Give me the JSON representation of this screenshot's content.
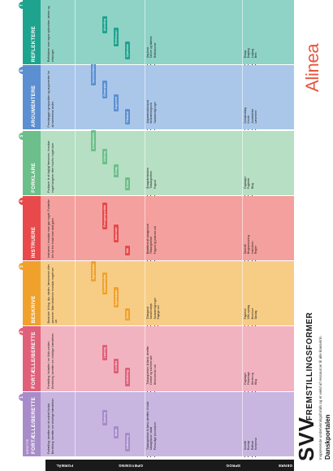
{
  "heading": {
    "svv": "SVV",
    "title": "FREMSTILLINGSFORMER"
  },
  "footer": {
    "title": "Danskportalen",
    "subtitle": "Inspirerende undervisningsforløb og et væld af ressourcer til alle klassetrin."
  },
  "logo": "Alinea",
  "row_labels": [
    "FORMÅL",
    "OPBYGNING",
    "SPROG",
    "GENRE"
  ],
  "columns": [
    {
      "name": "FORTÆLLE/BERETTE",
      "sub": "BERETTE",
      "badge": "1",
      "color": "#a88bc9",
      "light": "#c8b6e0",
      "purpose": "Fortælling: beretter om et ordnet forløb. Beretning: beretter om virkelige hændelser.",
      "structure": [
        "Indledning",
        "Midte",
        "Slutning"
      ],
      "language": [
        "Tidsangivelser, fx først, derefter, til sidst",
        "Udsagnsord i datid",
        "Personlige pronominer"
      ],
      "genre": [
        "Novelle",
        "Eventyr",
        "Referat",
        "Kortprosa"
      ]
    },
    {
      "name": "FORTÆLLE/BERETTE",
      "sub": "",
      "badge": "2",
      "color": "#e0607a",
      "light": "#f2b3c0",
      "purpose": "Fortælling: fortæller i en fiktiv verden. Beretning: beretter om virkelige hændelser.",
      "structure": [
        "Indledning",
        "Konflikt",
        "Løsning"
      ],
      "language": [
        "Tidsangivelser, fx først, derefter",
        "Direkte og indirekte tale",
        "Beskrivende ord"
      ],
      "genre": [
        "Fagbøger",
        "Reportage",
        "Beretning",
        "Blog"
      ]
    },
    {
      "name": "BESKRIVE",
      "sub": "",
      "badge": "3",
      "color": "#f0a12c",
      "light": "#f7cd85",
      "purpose": "Beskriver fx ting, dyr, steder, fænomener eller personer. Man beskriver hvordan noget ser ud.",
      "structure": [
        "Emne",
        "Egenskaber",
        "Karakteristika",
        "Egenskaber"
      ],
      "language": [
        "Tillægsord",
        "Sanseindtryk",
        "Sammenligninger",
        "Faglige ord"
      ],
      "genre": [
        "Fagtekst",
        "Wiki-opslag",
        "Brochure",
        "Opslag"
      ]
    },
    {
      "name": "INSTRUERE",
      "sub": "",
      "badge": "4",
      "color": "#e8494a",
      "light": "#f4a09e",
      "purpose": "Instruerer i hvordan man gør noget. Fortæller trin for trin hvad man skal gøre.",
      "structure": [
        "Mål",
        "Materialer",
        "Fremgangsmåde"
      ],
      "language": [
        "Bydeform af udsagnsord",
        "Tidsangivelser",
        "Fagord og præcise ord"
      ],
      "genre": [
        "Opskrift",
        "Brugsanvisning",
        "Instruktion",
        "Regler"
      ]
    },
    {
      "name": "FORKLARE",
      "sub": "",
      "badge": "5",
      "color": "#6cbf8a",
      "light": "#b7dfc4",
      "purpose": "Forklarer fx et fagligt fænomen, hvordan noget fungerer eller hvorfor noget sker.",
      "structure": [
        "Emne",
        "Årsag",
        "Virkning",
        "Konsekvens"
      ],
      "language": [
        "Årsagsforbindere",
        "Tidsangivelser",
        "Fagord"
      ],
      "genre": [
        "Fagbøger",
        "Fagtekst",
        "Blog"
      ]
    },
    {
      "name": "ARGUMENTERE",
      "sub": "",
      "badge": "6",
      "color": "#5b8fd1",
      "light": "#aac7ea",
      "purpose": "Fremlægger synspunkter og argumenter for at overbevise andre.",
      "structure": [
        "Påstand",
        "Argument",
        "Eksempler",
        "Sammenfatning"
      ],
      "language": [
        "Argumentationsord",
        "Modsætningsord",
        "Sammenligninger"
      ],
      "genre": [
        "Debatindlæg",
        "Kronik",
        "Anmeldelse",
        "Læserbrev"
      ]
    },
    {
      "name": "REFLEKTERE",
      "sub": "",
      "badge": "7",
      "color": "#1ea38f",
      "light": "#8fd3c6",
      "purpose": "Reflekterer over egne oplevelser, tanker og erfaringer.",
      "structure": [
        "Oplevelse",
        "Refleksion",
        "Afrunding"
      ],
      "language": [
        "Jeg-form",
        "Tanker og følelser",
        "Refleksioner"
      ],
      "genre": [
        "Essay",
        "Dagbog",
        "Logbog",
        "Brev"
      ]
    }
  ]
}
